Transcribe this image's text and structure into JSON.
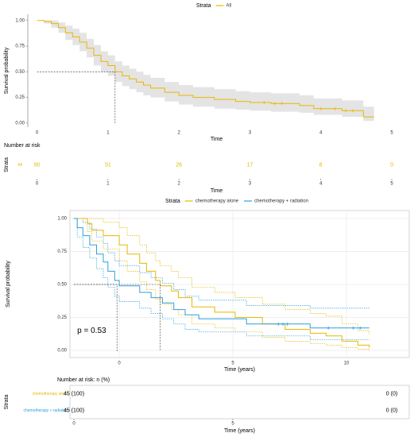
{
  "chart_data": [
    {
      "type": "line",
      "legend_title": "Strata",
      "ylabel": "Survival probability",
      "xlabel": "Time",
      "xlim": [
        -0.13,
        5.19
      ],
      "ylim": [
        -0.04,
        1.06
      ],
      "xticks": [
        0,
        1,
        2,
        3,
        4,
        5
      ],
      "yticks": [
        {
          "value": 0,
          "label": "0.00"
        },
        {
          "value": 0.25,
          "label": "0.25"
        },
        {
          "value": 0.5,
          "label": "0.50"
        },
        {
          "value": 0.75,
          "label": "0.75"
        },
        {
          "value": 1,
          "label": "1.00"
        }
      ],
      "grid": false,
      "ci_color": "#e4e4e4",
      "median_y": 0.5,
      "series": [
        {
          "name": "All",
          "color": "#E7B800",
          "median_x": 1.1,
          "x": [
            0,
            0.1,
            0.2,
            0.3,
            0.4,
            0.5,
            0.6,
            0.7,
            0.8,
            0.9,
            1.0,
            1.1,
            1.2,
            1.3,
            1.4,
            1.5,
            1.6,
            1.8,
            2.0,
            2.2,
            2.5,
            2.8,
            3.0,
            3.3,
            3.7,
            3.9,
            4.3,
            4.6,
            4.75
          ],
          "values": [
            1,
            0.99,
            0.97,
            0.93,
            0.88,
            0.84,
            0.79,
            0.73,
            0.66,
            0.6,
            0.56,
            0.5,
            0.46,
            0.43,
            0.4,
            0.37,
            0.34,
            0.3,
            0.27,
            0.25,
            0.23,
            0.21,
            0.2,
            0.19,
            0.17,
            0.14,
            0.12,
            0.06,
            0.06
          ],
          "ci_lower": [
            1,
            0.97,
            0.93,
            0.88,
            0.81,
            0.76,
            0.7,
            0.64,
            0.56,
            0.5,
            0.46,
            0.4,
            0.36,
            0.33,
            0.3,
            0.27,
            0.25,
            0.21,
            0.18,
            0.16,
            0.14,
            0.13,
            0.12,
            0.11,
            0.1,
            0.08,
            0.06,
            0.02,
            0.02
          ],
          "ci_upper": [
            1,
            1,
            1,
            0.98,
            0.95,
            0.92,
            0.88,
            0.82,
            0.76,
            0.7,
            0.66,
            0.6,
            0.56,
            0.53,
            0.5,
            0.47,
            0.44,
            0.4,
            0.37,
            0.35,
            0.33,
            0.31,
            0.3,
            0.29,
            0.27,
            0.24,
            0.22,
            0.16,
            0.16
          ],
          "censor_x": [
            3.2,
            3.35,
            3.45,
            4.0,
            4.2,
            4.35,
            4.45
          ],
          "censor_values": [
            0.2,
            0.19,
            0.19,
            0.14,
            0.14,
            0.12,
            0.12
          ]
        }
      ]
    },
    {
      "type": "table",
      "title": "Number at risk",
      "ylabel": "Strata",
      "xlabel": "Time",
      "xlim": [
        -0.13,
        5.19
      ],
      "xticks": [
        0,
        1,
        2,
        3,
        4,
        5
      ],
      "value_color": "#E7B800",
      "rows": [
        {
          "name": "All",
          "color": "#E7B800",
          "x": [
            0,
            1,
            2,
            3,
            4,
            5
          ],
          "values": [
            90,
            51,
            26,
            17,
            8,
            0
          ]
        }
      ]
    },
    {
      "type": "line",
      "legend_title": "Strata",
      "ylabel": "Survival probability",
      "xlabel": "Time (years)",
      "xlim": [
        -2.17,
        12.76
      ],
      "ylim": [
        -0.054,
        1.06
      ],
      "xticks": [
        0,
        5,
        10
      ],
      "yticks": [
        {
          "value": 0,
          "label": "0.00"
        },
        {
          "value": 0.25,
          "label": "0.25"
        },
        {
          "value": 0.5,
          "label": "0.50"
        },
        {
          "value": 0.75,
          "label": "0.75"
        },
        {
          "value": 1,
          "label": "1.00"
        }
      ],
      "grid": true,
      "median_y": 0.5,
      "annotation": {
        "text": "p = 0.53",
        "x": -1.85,
        "y": 0.15
      },
      "series": [
        {
          "name": "chemotherapy alone",
          "color": "#E7B800",
          "median_x": 1.8,
          "x": [
            -2,
            -1.4,
            -1.2,
            -0.7,
            0,
            0.35,
            0.9,
            1.2,
            1.6,
            1.8,
            2.3,
            2.6,
            3.2,
            4.2,
            5.1,
            6.3,
            7.3,
            8.4,
            9.1,
            9.8,
            10.5,
            11.0
          ],
          "values": [
            1,
            0.96,
            0.91,
            0.87,
            0.8,
            0.73,
            0.66,
            0.6,
            0.53,
            0.49,
            0.45,
            0.4,
            0.33,
            0.29,
            0.25,
            0.2,
            0.16,
            0.13,
            0.11,
            0.07,
            0.04,
            0.02
          ],
          "ci_lower": [
            1,
            0.9,
            0.83,
            0.77,
            0.68,
            0.6,
            0.52,
            0.46,
            0.39,
            0.35,
            0.31,
            0.27,
            0.2,
            0.17,
            0.14,
            0.1,
            0.07,
            0.05,
            0.04,
            0.02,
            0.01,
            0
          ],
          "ci_upper": [
            1,
            1,
            1,
            0.97,
            0.93,
            0.87,
            0.8,
            0.74,
            0.68,
            0.64,
            0.6,
            0.55,
            0.48,
            0.44,
            0.4,
            0.35,
            0.31,
            0.28,
            0.26,
            0.2,
            0.15,
            0.12
          ]
        },
        {
          "name": "chemotherapy + radiation",
          "color": "#2E9FDF",
          "median_x": -0.1,
          "x": [
            -2,
            -1.85,
            -1.6,
            -1.3,
            -1.0,
            -0.7,
            -0.5,
            -0.2,
            0,
            0.9,
            1.4,
            1.9,
            2.4,
            2.9,
            3.5,
            5.6,
            8.4,
            11.0
          ],
          "values": [
            1,
            0.93,
            0.87,
            0.8,
            0.73,
            0.67,
            0.6,
            0.53,
            0.49,
            0.44,
            0.4,
            0.36,
            0.31,
            0.27,
            0.24,
            0.2,
            0.17,
            0.17
          ],
          "ci_lower": [
            1,
            0.86,
            0.78,
            0.7,
            0.62,
            0.55,
            0.48,
            0.41,
            0.37,
            0.32,
            0.28,
            0.24,
            0.2,
            0.16,
            0.14,
            0.11,
            0.08,
            0.08
          ],
          "ci_upper": [
            1,
            1,
            0.97,
            0.92,
            0.86,
            0.81,
            0.74,
            0.68,
            0.64,
            0.59,
            0.55,
            0.51,
            0.46,
            0.41,
            0.38,
            0.34,
            0.32,
            0.32
          ],
          "censor_x": [
            7.0,
            7.2,
            7.4,
            9.2,
            10.3,
            10.6
          ],
          "censor_values": [
            0.2,
            0.2,
            0.2,
            0.17,
            0.17,
            0.17
          ]
        }
      ]
    },
    {
      "type": "table",
      "title": "Number at risk: n (%)",
      "ylabel": "Strata",
      "xlabel": "Time (years)",
      "xlim": [
        -0.125,
        10.55
      ],
      "xticks": [
        0,
        5
      ],
      "value_color": "#000000",
      "rows": [
        {
          "name": "chemotherapy alone",
          "color": "#E7B800",
          "x": [
            0,
            10
          ],
          "values": [
            45,
            0
          ],
          "value_labels": [
            "45 (100)",
            "0 (0)"
          ]
        },
        {
          "name": "chemotherapy + radiation",
          "color": "#2E9FDF",
          "x": [
            0,
            10
          ],
          "values": [
            45,
            0
          ],
          "value_labels": [
            "45 (100)",
            "0 (0)"
          ]
        }
      ]
    }
  ]
}
